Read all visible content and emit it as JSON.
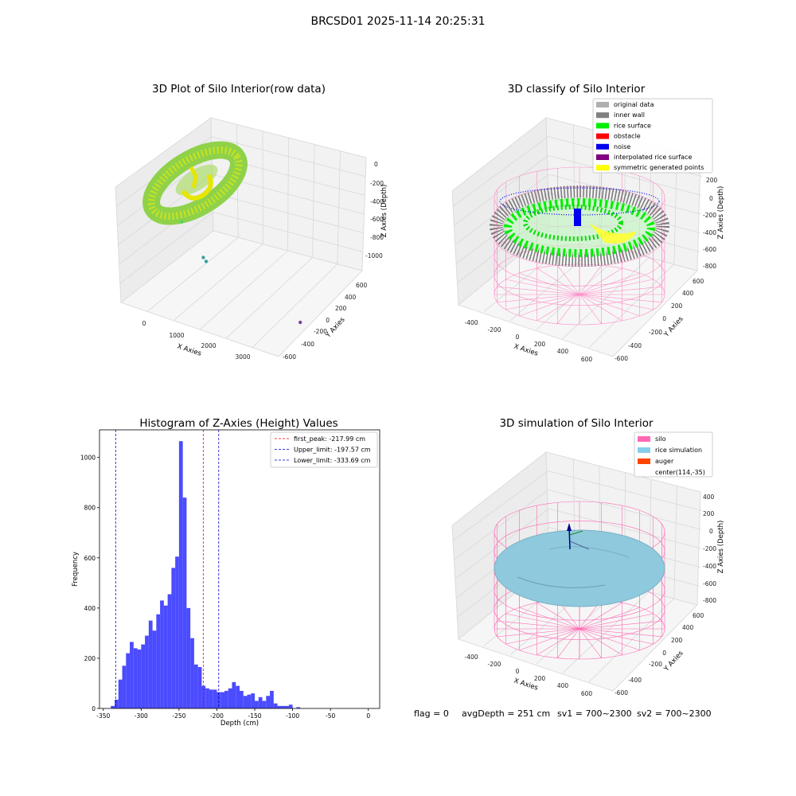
{
  "suptitle": "BRCSD01 2025-11-14 20:25:31",
  "footer": {
    "flag": "flag = 0",
    "avg_depth": "avgDepth = 251 cm",
    "sv1": "sv1 = 700~2300",
    "sv2": "sv2 = 700~2300"
  },
  "colors": {
    "hist_bar": "#4b4bff",
    "first_peak_line": "#ff0000",
    "limit_line": "#0000cc",
    "silo_wire": "#ff69b4",
    "rice_simulation": "#87ceeb",
    "rice_surface": "#00ee00",
    "noise": "#0000ee",
    "symmetric": "#ffff00",
    "inner_wall": "#888888"
  },
  "chart_data": [
    {
      "type": "scatter3d",
      "title": "3D Plot of Silo Interior(row data)",
      "xlabel": "X Axies",
      "ylabel": "Y Axies",
      "zlabel": "Z Axies (Depth)",
      "x_ticks": [
        "0",
        "1000",
        "2000",
        "3000"
      ],
      "y_ticks": [
        "-600",
        "-400",
        "-200",
        "0",
        "200",
        "400",
        "600"
      ],
      "z_ticks": [
        "0",
        "-200",
        "-400",
        "-600",
        "-800",
        "-1000"
      ],
      "outlier_points": [
        {
          "x": 300,
          "y": 100,
          "z": -550
        },
        {
          "x": 900,
          "y": 50,
          "z": -800
        },
        {
          "x": 1000,
          "y": 60,
          "z": -820
        },
        {
          "x": 3200,
          "y": 100,
          "z": -1000
        }
      ]
    },
    {
      "type": "scatter3d",
      "title": "3D classify of Silo Interior",
      "xlabel": "X Axies",
      "ylabel": "Y Axies",
      "zlabel": "Z Axies (Depth)",
      "x_ticks": [
        "-400",
        "-200",
        "0",
        "200",
        "400",
        "600"
      ],
      "y_ticks": [
        "-600",
        "-400",
        "-200",
        "0",
        "200",
        "400",
        "600"
      ],
      "z_ticks": [
        "200",
        "0",
        "-200",
        "-400",
        "-600",
        "-800"
      ],
      "legend": [
        {
          "label": "original data",
          "color": "#b0b0b0"
        },
        {
          "label": "inner wall",
          "color": "#808080"
        },
        {
          "label": "rice surface",
          "color": "#00ee00"
        },
        {
          "label": "obstacle",
          "color": "#ff0000"
        },
        {
          "label": "noise",
          "color": "#0000ee"
        },
        {
          "label": "interpolated rice surface",
          "color": "#800080"
        },
        {
          "label": "symmetric generated points",
          "color": "#ffff00"
        }
      ],
      "legend_position": "top-right"
    },
    {
      "type": "histogram",
      "title": "Histogram of Z-Axies (Height) Values",
      "xlabel": "Depth (cm)",
      "ylabel": "Frequency",
      "xlim": [
        -355,
        15
      ],
      "ylim": [
        0,
        1110
      ],
      "x_ticks": [
        -350,
        -300,
        -250,
        -200,
        -150,
        -100,
        -50,
        0
      ],
      "y_ticks": [
        0,
        200,
        400,
        600,
        800,
        1000
      ],
      "bin_start": -340,
      "bin_width": 5,
      "values": [
        10,
        35,
        115,
        170,
        220,
        265,
        240,
        235,
        255,
        290,
        350,
        310,
        375,
        430,
        410,
        455,
        560,
        605,
        1065,
        840,
        400,
        280,
        175,
        165,
        90,
        80,
        75,
        75,
        65,
        65,
        70,
        80,
        105,
        90,
        70,
        50,
        55,
        60,
        30,
        45,
        30,
        50,
        70,
        20,
        10,
        10,
        10,
        15,
        0,
        5
      ],
      "vlines": [
        {
          "label": "first_peak: -217.99 cm",
          "x": -217.99,
          "color": "#ff0000"
        },
        {
          "label": "Upper_limit: -197.57 cm",
          "x": -197.57,
          "color": "#0000cc"
        },
        {
          "label": "Lower_limit: -333.69 cm",
          "x": -333.69,
          "color": "#0000cc"
        }
      ],
      "legend_position": "top-right"
    },
    {
      "type": "surface3d",
      "title": "3D simulation of Silo Interior",
      "xlabel": "X Axies",
      "ylabel": "Y Axies",
      "zlabel": "Z Axies (Depth)",
      "x_ticks": [
        "-400",
        "-200",
        "0",
        "200",
        "400",
        "600"
      ],
      "y_ticks": [
        "-600",
        "-400",
        "-200",
        "0",
        "200",
        "400",
        "600"
      ],
      "z_ticks": [
        "400",
        "200",
        "0",
        "-200",
        "-400",
        "-600",
        "-800"
      ],
      "legend": [
        {
          "label": "silo",
          "color": "#ff69b4"
        },
        {
          "label": "rice simulation",
          "color": "#87ceeb"
        },
        {
          "label": "auger",
          "color": "#ff4500"
        },
        {
          "label": "center(114,-35)",
          "color": ""
        }
      ],
      "legend_position": "top-right"
    }
  ]
}
